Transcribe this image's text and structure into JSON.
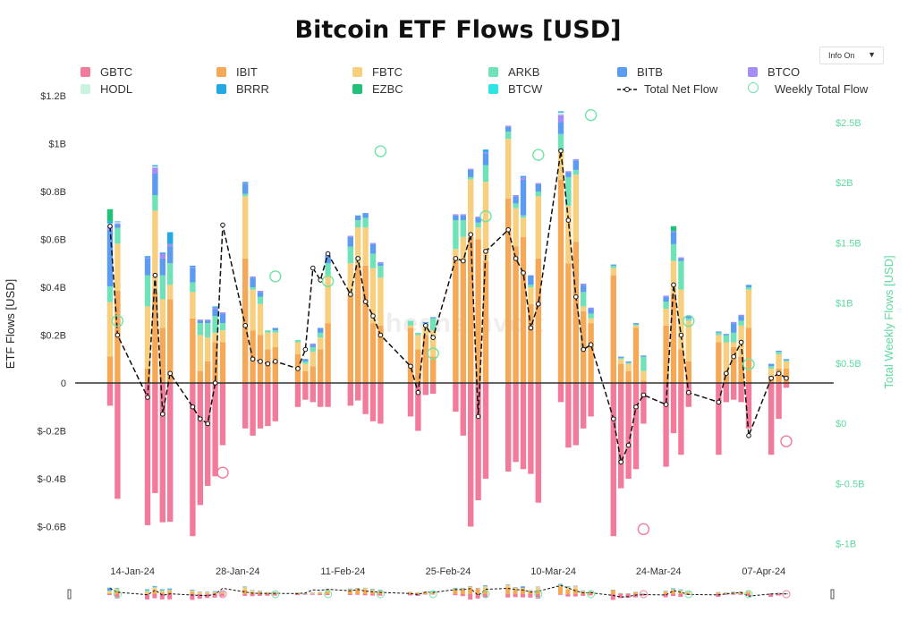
{
  "title": "Bitcoin ETF Flows [USD]",
  "info_toggle": {
    "label": "Info On",
    "arrow": "▼"
  },
  "watermark": "thechainvolt",
  "legend": [
    {
      "name": "GBTC",
      "color": "#f27a9b",
      "kind": "bar"
    },
    {
      "name": "IBIT",
      "color": "#f5a855",
      "kind": "bar"
    },
    {
      "name": "FBTC",
      "color": "#f7cf7e",
      "kind": "bar"
    },
    {
      "name": "ARKB",
      "color": "#6fe3b7",
      "kind": "bar"
    },
    {
      "name": "BITB",
      "color": "#5b9bf0",
      "kind": "bar"
    },
    {
      "name": "BTCO",
      "color": "#a68cf5",
      "kind": "bar"
    },
    {
      "name": "HODL",
      "color": "#c9f2e0",
      "kind": "bar"
    },
    {
      "name": "BRRR",
      "color": "#23a9e6",
      "kind": "bar"
    },
    {
      "name": "EZBC",
      "color": "#22c17a",
      "kind": "bar"
    },
    {
      "name": "BTCW",
      "color": "#2ce6e6",
      "kind": "bar"
    },
    {
      "name": "Total Net Flow",
      "color": "#111111",
      "kind": "line"
    },
    {
      "name": "Weekly Total Flow",
      "color": "#6fe3a6",
      "kind": "circle"
    }
  ],
  "chart_data": {
    "type": "bar",
    "title": "Bitcoin ETF Flows [USD]",
    "ylabel": "ETF Flows [USD]",
    "y2label": "Total Weekly Flows [USD]",
    "ylim": [
      -0.7,
      1.2
    ],
    "y2lim": [
      -1.0,
      2.5
    ],
    "yticks": [
      -0.6,
      -0.4,
      -0.2,
      0,
      0.2,
      0.4,
      0.6,
      0.8,
      1.0,
      1.2
    ],
    "ytick_labels": [
      "$-0.6B",
      "$-0.4B",
      "$-0.2B",
      "0",
      "$0.2B",
      "$0.4B",
      "$0.6B",
      "$0.8B",
      "$1B",
      "$1.2B"
    ],
    "y2ticks": [
      -1.0,
      -0.5,
      0,
      0.5,
      1.0,
      1.5,
      2.0,
      2.5
    ],
    "y2tick_labels": [
      "$-1B",
      "$-0.5B",
      "$0",
      "$0.5B",
      "$1B",
      "$1.5B",
      "$2B",
      "$2.5B"
    ],
    "x_ticks": [
      {
        "label": "14-Jan-24",
        "day": 3
      },
      {
        "label": "28-Jan-24",
        "day": 17
      },
      {
        "label": "11-Feb-24",
        "day": 31
      },
      {
        "label": "25-Feb-24",
        "day": 45
      },
      {
        "label": "10-Mar-24",
        "day": 59
      },
      {
        "label": "24-Mar-24",
        "day": 73
      },
      {
        "label": "07-Apr-24",
        "day": 87
      }
    ],
    "series_names": [
      "GBTC",
      "IBIT",
      "FBTC",
      "ARKB",
      "BITB",
      "BTCO",
      "HODL",
      "BRRR",
      "EZBC",
      "BTCW"
    ],
    "days": [
      {
        "date": "2024-01-11",
        "v": [
          -0.095,
          0.111,
          0.227,
          0.065,
          0.237,
          0.017,
          0.01,
          0.009,
          0.05,
          0
        ]
      },
      {
        "date": "2024-01-12",
        "v": [
          -0.484,
          0.386,
          0.196,
          0.066,
          0.014,
          0.005,
          0.005,
          0.003,
          0,
          0
        ]
      },
      {
        "date": "2024-01-16",
        "v": [
          -0.594,
          0.06,
          0.26,
          0.13,
          0.07,
          0.005,
          0,
          0.005,
          0,
          0
        ]
      },
      {
        "date": "2024-01-17",
        "v": [
          -0.46,
          0.38,
          0.34,
          0.065,
          0.09,
          0.025,
          0.005,
          0.005,
          0,
          0
        ]
      },
      {
        "date": "2024-01-18",
        "v": [
          -0.582,
          0.23,
          0.12,
          0.1,
          0.07,
          0.02,
          0,
          0.005,
          0,
          0
        ]
      },
      {
        "date": "2024-01-19",
        "v": [
          -0.58,
          0.35,
          0.06,
          0.09,
          0.07,
          0.01,
          0,
          0.05,
          0,
          0
        ]
      },
      {
        "date": "2024-01-22",
        "v": [
          -0.64,
          0.27,
          0.11,
          0.04,
          0.06,
          0.005,
          0,
          0.005,
          0,
          0
        ]
      },
      {
        "date": "2024-01-23",
        "v": [
          -0.51,
          0.05,
          0.15,
          0.05,
          0.01,
          0.005,
          0,
          0,
          0,
          0
        ]
      },
      {
        "date": "2024-01-24",
        "v": [
          -0.43,
          0.09,
          0.1,
          0.06,
          0.01,
          0.005,
          0,
          0,
          0,
          0
        ]
      },
      {
        "date": "2024-01-25",
        "v": [
          -0.39,
          0.17,
          0.04,
          0.07,
          0.03,
          0.005,
          0,
          0.005,
          0,
          0
        ]
      },
      {
        "date": "2024-01-26",
        "v": [
          -0.26,
          0.17,
          0.05,
          0.03,
          0.04,
          0.005,
          0,
          0,
          0,
          0
        ]
      },
      {
        "date": "2024-01-29",
        "v": [
          -0.19,
          0.52,
          0.26,
          0.01,
          0.04,
          0.005,
          0,
          0.005,
          0,
          0
        ]
      },
      {
        "date": "2024-01-30",
        "v": [
          -0.22,
          0.22,
          0.17,
          0.01,
          0.04,
          0.005,
          0,
          0,
          0,
          0
        ]
      },
      {
        "date": "2024-01-31",
        "v": [
          -0.19,
          0.2,
          0.13,
          0.03,
          0.02,
          0.005,
          0,
          0,
          0,
          0
        ]
      },
      {
        "date": "2024-02-01",
        "v": [
          -0.18,
          0.14,
          0.07,
          0.01,
          0,
          0,
          0,
          0,
          0,
          0
        ]
      },
      {
        "date": "2024-02-02",
        "v": [
          -0.16,
          0.15,
          0.06,
          0.01,
          0.01,
          0,
          0,
          0,
          0,
          0
        ]
      },
      {
        "date": "2024-02-05",
        "v": [
          -0.1,
          0.12,
          0.05,
          0.01,
          0,
          0,
          0,
          0,
          0,
          0
        ]
      },
      {
        "date": "2024-02-06",
        "v": [
          -0.07,
          0.05,
          0.03,
          0.01,
          0.01,
          0,
          0,
          0,
          0,
          0
        ]
      },
      {
        "date": "2024-02-07",
        "v": [
          -0.08,
          0.07,
          0.06,
          0.02,
          0.01,
          0.005,
          0,
          0,
          0,
          0
        ]
      },
      {
        "date": "2024-02-08",
        "v": [
          -0.1,
          0.14,
          0.05,
          0.02,
          0.02,
          0,
          0,
          0,
          0,
          0
        ]
      },
      {
        "date": "2024-02-09",
        "v": [
          -0.1,
          0.25,
          0.2,
          0.05,
          0.03,
          0.005,
          0,
          0,
          0,
          0
        ]
      },
      {
        "date": "2024-02-12",
        "v": [
          -0.095,
          0.37,
          0.13,
          0.07,
          0.04,
          0.005,
          0,
          0,
          0,
          0
        ]
      },
      {
        "date": "2024-02-13",
        "v": [
          -0.073,
          0.49,
          0.16,
          0.03,
          0.02,
          0,
          0,
          0,
          0,
          0
        ]
      },
      {
        "date": "2024-02-14",
        "v": [
          -0.13,
          0.49,
          0.16,
          0.04,
          0.02,
          0,
          0,
          0,
          0,
          0
        ]
      },
      {
        "date": "2024-02-15",
        "v": [
          -0.16,
          0.25,
          0.23,
          0.06,
          0.04,
          0.005,
          0,
          0,
          0,
          0
        ]
      },
      {
        "date": "2024-02-16",
        "v": [
          -0.17,
          0.24,
          0.2,
          0.05,
          0.01,
          0.005,
          0,
          0,
          0,
          0
        ]
      },
      {
        "date": "2024-02-20",
        "v": [
          -0.14,
          0.23,
          0.01,
          0.02,
          0,
          0,
          0,
          0,
          0,
          0
        ]
      },
      {
        "date": "2024-02-21",
        "v": [
          -0.2,
          0.14,
          0.06,
          0.01,
          0,
          0,
          0,
          0,
          0,
          0
        ]
      },
      {
        "date": "2024-02-22",
        "v": [
          -0.05,
          0.2,
          0.04,
          0.01,
          0.005,
          0,
          0,
          0,
          0,
          0
        ]
      },
      {
        "date": "2024-02-23",
        "v": [
          -0.045,
          0.11,
          0.11,
          0.05,
          0.005,
          0,
          0,
          0,
          0,
          0
        ]
      },
      {
        "date": "2024-02-26",
        "v": [
          -0.12,
          0.52,
          0.04,
          0.12,
          0.02,
          0.005,
          0,
          0,
          0,
          0
        ]
      },
      {
        "date": "2024-02-27",
        "v": [
          -0.22,
          0.52,
          0.09,
          0.07,
          0.02,
          0.005,
          0,
          0,
          0,
          0
        ]
      },
      {
        "date": "2024-02-28",
        "v": [
          -0.6,
          0.61,
          0.24,
          0.01,
          0.03,
          0.005,
          0,
          0,
          0,
          0
        ]
      },
      {
        "date": "2024-02-29",
        "v": [
          -0.49,
          0.6,
          0.05,
          0.02,
          0.02,
          0.005,
          0,
          0,
          0,
          0
        ]
      },
      {
        "date": "2024-03-01",
        "v": [
          -0.4,
          0.51,
          0.33,
          0.07,
          0.05,
          0.005,
          0,
          0.01,
          0,
          0
        ]
      },
      {
        "date": "2024-03-04",
        "v": [
          -0.37,
          0.77,
          0.25,
          0.03,
          0.02,
          0.005,
          0,
          0,
          0,
          0
        ]
      },
      {
        "date": "2024-03-05",
        "v": [
          -0.33,
          0.57,
          0.16,
          0.02,
          0.03,
          0.005,
          0,
          0,
          0,
          0
        ]
      },
      {
        "date": "2024-03-06",
        "v": [
          -0.36,
          0.61,
          0.08,
          0.01,
          0.15,
          0.01,
          0,
          0.005,
          0,
          0
        ]
      },
      {
        "date": "2024-03-07",
        "v": [
          -0.38,
          0.33,
          0.07,
          0.01,
          0.04,
          0,
          0,
          0,
          0,
          0
        ]
      },
      {
        "date": "2024-03-08",
        "v": [
          -0.5,
          0.52,
          0.26,
          0.02,
          0.03,
          0.005,
          0,
          0,
          0,
          0
        ]
      },
      {
        "date": "2024-03-11",
        "v": [
          -0.08,
          0.85,
          0.12,
          0.07,
          0.05,
          0.03,
          0.01,
          0.005,
          0,
          0
        ]
      },
      {
        "date": "2024-03-12",
        "v": [
          -0.27,
          0.5,
          0.24,
          0.12,
          0.02,
          0.005,
          0,
          0,
          0,
          0
        ]
      },
      {
        "date": "2024-03-13",
        "v": [
          -0.26,
          0.59,
          0.28,
          0.02,
          0.04,
          0.005,
          0,
          0,
          0,
          0
        ]
      },
      {
        "date": "2024-03-14",
        "v": [
          -0.19,
          0.3,
          0.02,
          0.06,
          0.03,
          0.005,
          0,
          0,
          0,
          0
        ]
      },
      {
        "date": "2024-03-15",
        "v": [
          -0.14,
          0.25,
          0.02,
          0.02,
          0.02,
          0.005,
          0,
          0,
          0,
          0
        ]
      },
      {
        "date": "2024-03-18",
        "v": [
          -0.64,
          0.45,
          0.03,
          0.01,
          0.005,
          0,
          0,
          0,
          0,
          0
        ]
      },
      {
        "date": "2024-03-19",
        "v": [
          -0.44,
          0.08,
          0.02,
          0.005,
          0.005,
          0,
          0,
          0,
          0,
          0
        ]
      },
      {
        "date": "2024-03-20",
        "v": [
          -0.4,
          0.05,
          0.03,
          0.005,
          0.005,
          0,
          0,
          0,
          0,
          0
        ]
      },
      {
        "date": "2024-03-21",
        "v": [
          -0.36,
          0.23,
          0.01,
          0.005,
          0.005,
          0,
          0,
          0,
          0,
          0
        ]
      },
      {
        "date": "2024-03-22",
        "v": [
          -0.17,
          0.01,
          0.04,
          0.06,
          0.005,
          0,
          0,
          0,
          0,
          0
        ]
      },
      {
        "date": "2024-03-25",
        "v": [
          -0.35,
          0.24,
          0.07,
          0.03,
          0.02,
          0.005,
          0,
          0,
          0,
          0
        ]
      },
      {
        "date": "2024-03-26",
        "v": [
          -0.21,
          0.37,
          0.14,
          0.07,
          0.05,
          0.005,
          0,
          0,
          0.02,
          0
        ]
      },
      {
        "date": "2024-03-27",
        "v": [
          -0.3,
          0.14,
          0.25,
          0.12,
          0.01,
          0.005,
          0,
          0,
          0,
          0
        ]
      },
      {
        "date": "2024-03-28",
        "v": [
          -0.1,
          0.09,
          0.17,
          0.01,
          0.01,
          0,
          0,
          0,
          0,
          0
        ]
      },
      {
        "date": "2024-04-01",
        "v": [
          -0.3,
          0.17,
          0.03,
          0.01,
          0.005,
          0,
          0,
          0,
          0,
          0
        ]
      },
      {
        "date": "2024-04-02",
        "v": [
          -0.08,
          0.04,
          0.13,
          0.03,
          0.005,
          0,
          0,
          0,
          0,
          0
        ]
      },
      {
        "date": "2024-04-03",
        "v": [
          -0.07,
          0.15,
          0.02,
          0.04,
          0.04,
          0.005,
          0,
          0,
          0,
          0
        ]
      },
      {
        "date": "2024-04-04",
        "v": [
          -0.08,
          0.11,
          0.13,
          0.02,
          0.02,
          0.005,
          0,
          0,
          0,
          0
        ]
      },
      {
        "date": "2024-04-05",
        "v": [
          -0.19,
          0.23,
          0.16,
          0.01,
          0.01,
          0,
          0,
          0,
          0,
          0
        ]
      },
      {
        "date": "2024-04-08",
        "v": [
          -0.3,
          0.03,
          0.03,
          0.01,
          0.01,
          0,
          0,
          0,
          0,
          0
        ]
      },
      {
        "date": "2024-04-09",
        "v": [
          -0.15,
          0.06,
          0.06,
          0.01,
          0.005,
          0,
          0,
          0,
          0,
          0
        ]
      },
      {
        "date": "2024-04-10",
        "v": [
          -0.02,
          0.06,
          0.03,
          0.005,
          0.005,
          0,
          0,
          0,
          0,
          0
        ]
      }
    ],
    "net_flow": [
      0.655,
      0.2,
      -0.06,
      0.45,
      -0.13,
      0.04,
      -0.1,
      -0.15,
      -0.17,
      0.0,
      0.66,
      0.24,
      0.1,
      0.09,
      0.08,
      0.09,
      0.06,
      0.14,
      0.48,
      0.43,
      0.54,
      0.37,
      0.52,
      0.34,
      0.28,
      0.2,
      0.07,
      -0.04,
      0.24,
      0.19,
      0.52,
      0.51,
      0.62,
      -0.14,
      0.55,
      0.64,
      0.52,
      0.46,
      0.23,
      0.33,
      0.97,
      0.68,
      0.36,
      0.14,
      0.16,
      -0.15,
      -0.33,
      -0.26,
      -0.1,
      -0.05,
      -0.09,
      0.41,
      0.2,
      -0.04,
      -0.08,
      0.04,
      0.11,
      0.17,
      -0.22,
      0.02,
      0.04,
      0.02
    ],
    "weekly_total": [
      {
        "date": "2024-01-12",
        "value": 0.85
      },
      {
        "date": "2024-01-26",
        "value": -0.41
      },
      {
        "date": "2024-02-02",
        "value": 1.22
      },
      {
        "date": "2024-02-09",
        "value": 1.18
      },
      {
        "date": "2024-02-16",
        "value": 2.26
      },
      {
        "date": "2024-02-23",
        "value": 0.58
      },
      {
        "date": "2024-03-01",
        "value": 1.72
      },
      {
        "date": "2024-03-08",
        "value": 2.23
      },
      {
        "date": "2024-03-15",
        "value": 2.56
      },
      {
        "date": "2024-03-22",
        "value": -0.88
      },
      {
        "date": "2024-03-28",
        "value": 0.85
      },
      {
        "date": "2024-04-05",
        "value": 0.49
      },
      {
        "date": "2024-04-10",
        "value": -0.15
      }
    ]
  }
}
